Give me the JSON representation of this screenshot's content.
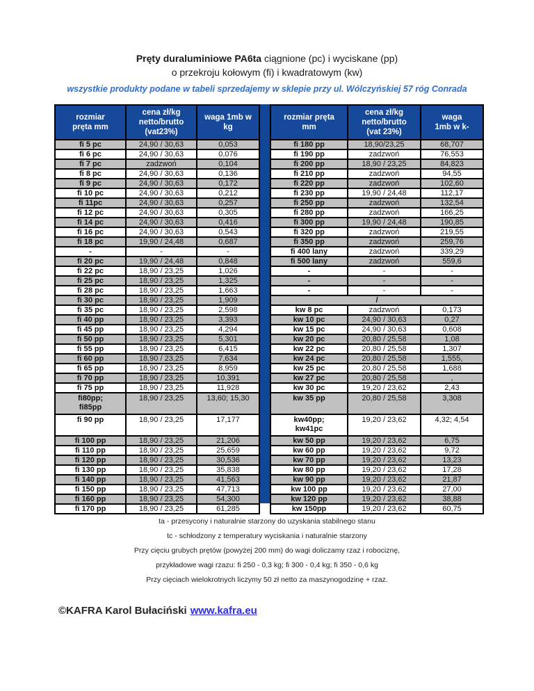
{
  "title": {
    "bold": "Pręty duraluminiowe PA6ta",
    "rest": " ciągnione (pc) i wyciskane (pp)",
    "line2": "o przekroju kołowym (fi) i kwadratowym (kw)",
    "subtitle": "wszystkie produkty podane w tabeli sprzedajemy w sklepie przy ul. Wólczyńskiej 57 róg Conrada"
  },
  "colors": {
    "header_bg": "#17499b",
    "divider": "#114595",
    "row_gray": "#c0c0c0",
    "subtitle_blue": "#2f6fd0",
    "link_blue": "#2e2ee0"
  },
  "left_table": {
    "headers": [
      "rozmiar\npręta mm",
      "cena zł/kg\nnetto/brutto\n(vat23%)",
      "waga 1mb w\nkg"
    ],
    "rows": [
      {
        "size": "fi 5 pc",
        "price": "24,90 / 30,63",
        "weight": "0,053"
      },
      {
        "size": "fi 6 pc",
        "price": "24,90 / 30,63",
        "weight": "0,076"
      },
      {
        "size": "fi 7 pc",
        "price": "zadzwoń",
        "weight": "0,104"
      },
      {
        "size": "fi 8 pc",
        "price": "24,90 / 30,63",
        "weight": "0,136"
      },
      {
        "size": "fi 9 pc",
        "price": "24,90 / 30,63",
        "weight": "0,172"
      },
      {
        "size": "fi 10 pc",
        "price": "24,90 / 30,63",
        "weight": "0,212"
      },
      {
        "size": "fi 11pc",
        "price": "24,90 / 30,63",
        "weight": "0,257"
      },
      {
        "size": "fi 12 pc",
        "price": "24,90 / 30,63",
        "weight": "0,305"
      },
      {
        "size": "fi 14 pc",
        "price": "24,90 / 30,63",
        "weight": "0,416"
      },
      {
        "size": "fi 16 pc",
        "price": "24,90 / 30,63",
        "weight": "0,543"
      },
      {
        "size": "fi 18 pc",
        "price": "19,90 / 24,48",
        "weight": "0,687"
      },
      {
        "size": "-",
        "price": "-",
        "weight": "-"
      },
      {
        "size": "fi 20 pc",
        "price": "19,90 / 24,48",
        "weight": "0,848"
      },
      {
        "size": "fi 22 pc",
        "price": "18,90 / 23,25",
        "weight": "1,026"
      },
      {
        "size": "fi 25 pc",
        "price": "18,90 / 23,25",
        "weight": "1,325"
      },
      {
        "size": "fi 28 pc",
        "price": "18,90 / 23,25",
        "weight": "1,663"
      },
      {
        "size": "fi 30 pc",
        "price": "18,90 / 23,25",
        "weight": "1,909"
      },
      {
        "size": "fi 35 pc",
        "price": "18,90 / 23,25",
        "weight": "2,598"
      },
      {
        "size": "fi 40 pp",
        "price": "18,90 / 23,25",
        "weight": "3,393"
      },
      {
        "size": "fi 45 pp",
        "price": "18,90 / 23,25",
        "weight": "4,294"
      },
      {
        "size": "fi 50 pp",
        "price": "18,90 / 23,25",
        "weight": "5,301"
      },
      {
        "size": "fi 55 pp",
        "price": "18,90 / 23,25",
        "weight": "6,415"
      },
      {
        "size": "fi 60 pp",
        "price": "18,90 / 23,25",
        "weight": "7,634"
      },
      {
        "size": "fi 65 pp",
        "price": "18,90 / 23,25",
        "weight": "8,959"
      },
      {
        "size": "fi 70 pp",
        "price": "18,90 / 23,25",
        "weight": "10,391"
      },
      {
        "size": "fi 75 pp",
        "price": "18,90 / 23,25",
        "weight": "11,928"
      },
      {
        "size": "fi80pp;\nfi85pp",
        "price": "18,90 / 23,25",
        "weight": "13,60; 15,30",
        "tall": true
      },
      {
        "size": "fi 90 pp",
        "price": "18,90 / 23,25",
        "weight": "17,177",
        "tall": true
      },
      {
        "size": "fi 100 pp",
        "price": "18,90 / 23,25",
        "weight": "21,206"
      },
      {
        "size": "fi 110 pp",
        "price": "18,90 / 23,25",
        "weight": "25,659"
      },
      {
        "size": "fi 120 pp",
        "price": "18,90 / 23,25",
        "weight": "30,536"
      },
      {
        "size": "fi 130 pp",
        "price": "18,90 / 23,25",
        "weight": "35,838"
      },
      {
        "size": "fi 140 pp",
        "price": "18,90 / 23,25",
        "weight": "41,563"
      },
      {
        "size": "fi 150 pp",
        "price": "18,90 / 23,25",
        "weight": "47,713"
      },
      {
        "size": "fi 160 pp",
        "price": "18,90 / 23,25",
        "weight": "54,300"
      },
      {
        "size": "fi 170 pp",
        "price": "18,90 / 23,25",
        "weight": "61,285"
      }
    ]
  },
  "right_table": {
    "headers": [
      "rozmiar pręta\nmm",
      "cena zł/kg\nnetto/brutto\n(vat 23%)",
      "waga\n1mb w k-"
    ],
    "rows": [
      {
        "size": "fi 180 pp",
        "price": "18,90/23,25",
        "weight": "68,707"
      },
      {
        "size": "fi 190 pp",
        "price": "zadzwoń",
        "weight": "76,553"
      },
      {
        "size": "fi 200 pp",
        "price": "18,90 / 23,25",
        "weight": "84,823"
      },
      {
        "size": "fi 210 pp",
        "price": "zadzwoń",
        "weight": "94,55"
      },
      {
        "size": "fi 220 pp",
        "price": "zadzwoń",
        "weight": "102,60"
      },
      {
        "size": "fi 230 pp",
        "price": "19,90 / 24,48",
        "weight": "112,17"
      },
      {
        "size": "fi 250 pp",
        "price": "zadzwoń",
        "weight": "132,54"
      },
      {
        "size": "fi 280 pp",
        "price": "zadzwoń",
        "weight": "166,25"
      },
      {
        "size": "fi 300 pp",
        "price": "19,90 / 24,48",
        "weight": "190,85"
      },
      {
        "size": "fi 320 pp",
        "price": "zadzwoń",
        "weight": "219,55"
      },
      {
        "size": "fi 350 pp",
        "price": "zadzwoń",
        "weight": "259,76"
      },
      {
        "size": "fi 400 lany",
        "price": "zadzwoń",
        "weight": "339,29"
      },
      {
        "size": "fi 500 lany",
        "price": "zadzwoń",
        "weight": "559,6"
      },
      {
        "size": "-",
        "price": "-",
        "weight": "-"
      },
      {
        "size": "-",
        "price": "-",
        "weight": "-"
      },
      {
        "size": "-",
        "price": "-",
        "weight": "-"
      },
      {
        "size": "/",
        "merged": true
      },
      {
        "size": "kw 8 pc",
        "price": "zadzwoń",
        "weight": "0,173"
      },
      {
        "size": "kw 10 pc",
        "price": "24,90 / 30,63",
        "weight": "0,27"
      },
      {
        "size": "kw 15 pc",
        "price": "24,90 / 30,63",
        "weight": "0,608"
      },
      {
        "size": "kw 20 pc",
        "price": "20,80 / 25,58",
        "weight": "1,08"
      },
      {
        "size": "kw 22 pc",
        "price": "20,80 / 25,58",
        "weight": "1,307"
      },
      {
        "size": "kw 24 pc",
        "price": "20,80 / 25,58",
        "weight": "1,555,"
      },
      {
        "size": "kw 25 pc",
        "price": "20,80 / 25,58",
        "weight": "1,688"
      },
      {
        "size": "kw 27 pc",
        "price": "20,80 / 25,58",
        "weight": ","
      },
      {
        "size": "kw 30 pc",
        "price": "19,20 / 23,62",
        "weight": "2,43"
      },
      {
        "size": "kw 35 pp",
        "price": "20,80 / 25,58",
        "weight": "3,308",
        "tall": true
      },
      {
        "size": "kw40pp;\nkw41pc",
        "price": "19,20 / 23,62",
        "weight": "4,32; 4,54",
        "tall": true
      },
      {
        "size": "kw 50 pp",
        "price": "19,20 / 23,62",
        "weight": "6,75"
      },
      {
        "size": "kw 60 pp",
        "price": "19,20 / 23,62",
        "weight": "9,72"
      },
      {
        "size": "kw 70 pp",
        "price": "19,20 / 23,62",
        "weight": "13,23"
      },
      {
        "size": "kw 80 pp",
        "price": "19,20 / 23,62",
        "weight": "17,28"
      },
      {
        "size": "kw 90 pp",
        "price": "19,20 / 23,62",
        "weight": "21,87"
      },
      {
        "size": "kw 100 pp",
        "price": "19,20 / 23,62",
        "weight": "27,00"
      },
      {
        "size": "kw 120 pp",
        "price": "19,20 / 23,62",
        "weight": "38,88"
      },
      {
        "size": "kw 150pp",
        "price": "19,20 / 23,62",
        "weight": "60,75"
      }
    ]
  },
  "notes": [
    "ta - przesycony i naturalnie starzony do uzyskania stabilnego stanu",
    "tc - schłodzony z temperatury wyciskania i naturalnie starzony",
    "Przy cięciu grubych prętów (powyżej 200 mm) do wagi doliczamy rzaz i robociznę,",
    "przykładowe wagi rzazu: fi 250 - 0,3 kg; fi 300 - 0,4 kg; fi 350 - 0,6 kg",
    "Przy cięciach wielokrotnych liczymy 50 zł netto za maszynogodzinę + rzaz."
  ],
  "footer": {
    "copyright": "©KAFRA Karol Bułaciński",
    "link": "www.kafra.eu"
  }
}
